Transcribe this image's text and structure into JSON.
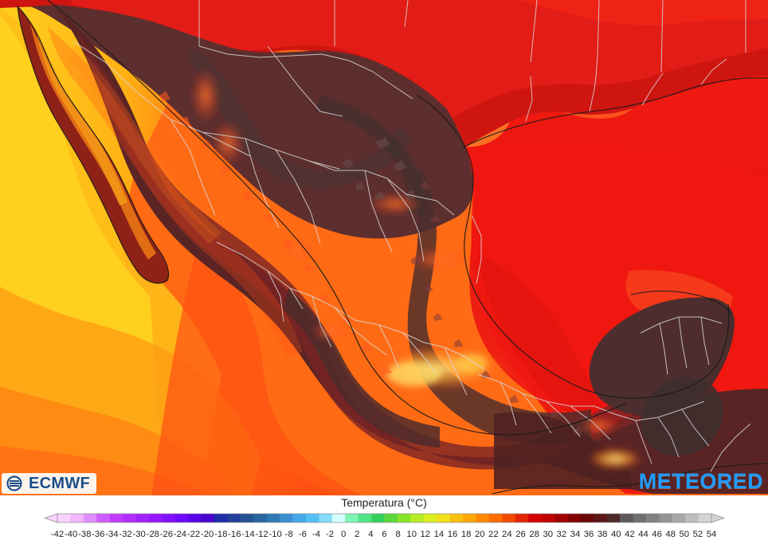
{
  "branding": {
    "left_logo_text": "ECMWF",
    "right_logo_text": "METEORED"
  },
  "legend": {
    "title": "Temperatura (°C)",
    "tick_labels": [
      "-42",
      "-40",
      "-38",
      "-36",
      "-34",
      "-32",
      "-30",
      "-28",
      "-26",
      "-24",
      "-22",
      "-20",
      "-18",
      "-16",
      "-14",
      "-12",
      "-10",
      "-8",
      "-6",
      "-4",
      "-2",
      "0",
      "2",
      "4",
      "6",
      "8",
      "10",
      "12",
      "14",
      "16",
      "18",
      "20",
      "22",
      "24",
      "26",
      "28",
      "30",
      "32",
      "34",
      "36",
      "38",
      "40",
      "42",
      "44",
      "46",
      "48",
      "50",
      "52",
      "54"
    ],
    "colors": [
      "#f8d2ff",
      "#f1b7ff",
      "#e08cff",
      "#d05dff",
      "#c13cff",
      "#b22eff",
      "#a322ff",
      "#9417ff",
      "#820fff",
      "#6d09ff",
      "#5904e8",
      "#4703cc",
      "#1f2ca8",
      "#23409d",
      "#245394",
      "#2766a0",
      "#2e79b5",
      "#3a8fd0",
      "#45a8ea",
      "#54c1f6",
      "#86dbfb",
      "#d3ffff",
      "#7cf5b4",
      "#4fe384",
      "#33d15c",
      "#5dd83b",
      "#87e32a",
      "#b8ec26",
      "#d9ef20",
      "#f0df19",
      "#f8c112",
      "#ffa50a",
      "#ff8a00",
      "#ff6d00",
      "#f24b00",
      "#e32400",
      "#d60000",
      "#be0000",
      "#a10000",
      "#830000",
      "#6b0606",
      "#5a1717",
      "#4f2828",
      "#5f5a5a",
      "#707070",
      "#818181",
      "#949494",
      "#a8a8a8",
      "#bdbdbd",
      "#d3d3d3"
    ]
  },
  "map": {
    "palette": {
      "ocean_pacific_yellow": "#ffc61a",
      "ocean_pacific_orange": "#ff8a18",
      "ocean_pacific_redorange": "#ff5b12",
      "gulf_red": "#ef1410",
      "land_dark": "#5d3535",
      "land_mid": "#7b2323",
      "land_brown": "#3f2f2f",
      "us_red": "#cc1212",
      "heat_hotspot": "#ffd34d",
      "heat_mid": "#ff3a1f",
      "border_color": "#d8d8d8",
      "coast_color": "#121212"
    }
  }
}
